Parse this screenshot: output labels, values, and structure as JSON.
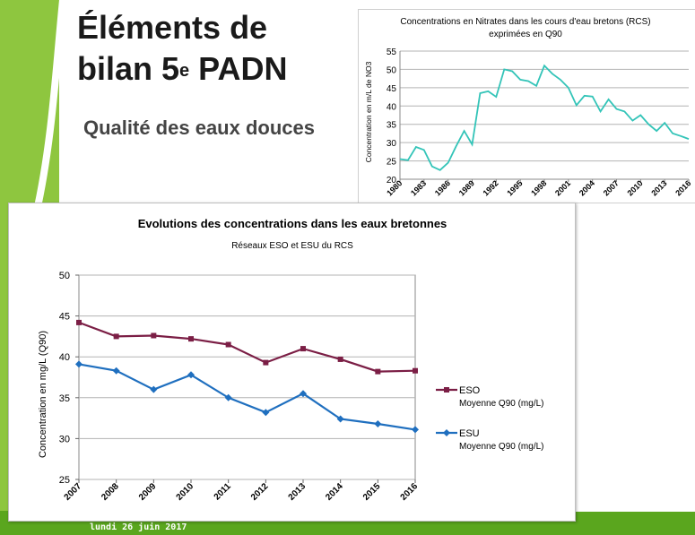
{
  "slide": {
    "title_line1": "Éléments de",
    "title_line2_pre": "bilan 5",
    "title_sup": "e",
    "title_line2_post": " PADN",
    "subtitle": "Qualité des eaux douces",
    "footer_date": "lundi 26 juin 2017"
  },
  "colors": {
    "green_bar": "#8ec63f",
    "green_footer": "#5aa61e",
    "nitrate_line": "#33c4b8",
    "eso": "#7b1e45",
    "esu": "#1f6fbf",
    "grid": "#b3b3b3"
  },
  "chart_data": [
    {
      "type": "line",
      "title_line1": "Concentrations en Nitrates dans les  cours d'eau bretons (RCS)",
      "title_line2": "exprimées en Q90",
      "xlabel": "",
      "ylabel": "Concentration en m/L de NO3",
      "ylim": [
        20,
        55
      ],
      "yticks": [
        20,
        25,
        30,
        35,
        40,
        45,
        50,
        55
      ],
      "xlim": [
        1980,
        2016
      ],
      "xticks": [
        "1980",
        "1983",
        "1986",
        "1989",
        "1992",
        "1995",
        "1998",
        "2001",
        "2004",
        "2007",
        "2010",
        "2013",
        "2016"
      ],
      "grid": true,
      "legend": "none",
      "series": [
        {
          "x": [
            1980,
            1981,
            1982,
            1983,
            1984,
            1985,
            1986,
            1987,
            1988,
            1989,
            1990,
            1991,
            1992,
            1993,
            1994,
            1995,
            1996,
            1997,
            1998,
            1999,
            2000,
            2001,
            2002,
            2003,
            2004,
            2005,
            2006,
            2007,
            2008,
            2009,
            2010,
            2011,
            2012,
            2013,
            2014,
            2015,
            2016
          ],
          "values": [
            25.5,
            25.2,
            28.8,
            28.0,
            23.5,
            22.5,
            24.5,
            29.0,
            33.2,
            29.5,
            43.5,
            44.0,
            42.5,
            50.0,
            49.5,
            47.2,
            46.8,
            45.5,
            51.0,
            48.8,
            47.2,
            45.0,
            40.2,
            42.8,
            42.6,
            38.5,
            41.8,
            39.2,
            38.5,
            36.0,
            37.5,
            35.0,
            33.2,
            35.4,
            32.5,
            31.8,
            31.0
          ]
        }
      ]
    },
    {
      "type": "line",
      "title": "Evolutions des concentrations dans les eaux bretonnes",
      "subtitle": "Réseaux ESO et ESU du RCS",
      "xlabel": "",
      "ylabel": "Concentration en mg/L (Q90)",
      "ylim": [
        25,
        50
      ],
      "yticks": [
        25,
        30,
        35,
        40,
        45,
        50
      ],
      "categories": [
        "2007",
        "2008",
        "2009",
        "2010",
        "2011",
        "2012",
        "2013",
        "2014",
        "2015",
        "2016"
      ],
      "grid": true,
      "legend": "right",
      "series": [
        {
          "name": "ESO",
          "name_line2": "Moyenne Q90 (mg/L)",
          "values": [
            44.2,
            42.5,
            42.6,
            42.2,
            41.5,
            39.3,
            41.0,
            39.7,
            38.2,
            38.3
          ]
        },
        {
          "name": "ESU",
          "name_line2": "Moyenne Q90 (mg/L)",
          "values": [
            39.1,
            38.3,
            36.0,
            37.8,
            35.0,
            33.2,
            35.5,
            32.4,
            31.8,
            31.1
          ]
        }
      ]
    }
  ]
}
